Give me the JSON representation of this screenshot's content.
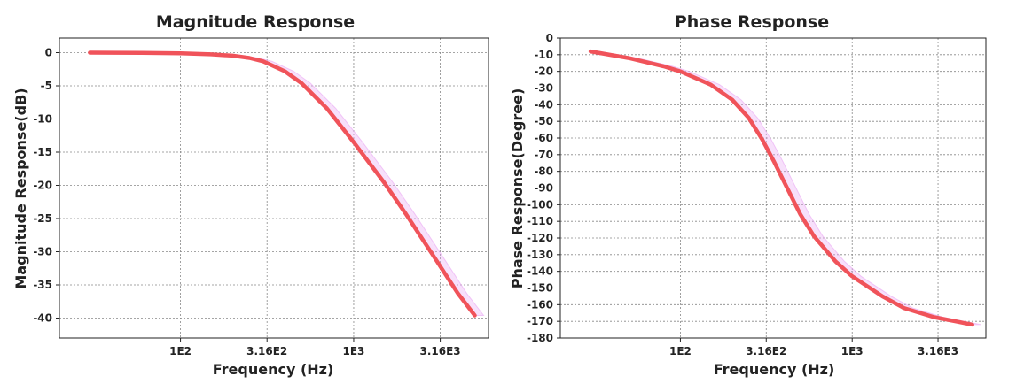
{
  "chart_data": [
    {
      "type": "line",
      "title": "Magnitude Response",
      "xlabel": "Frequency (Hz)",
      "ylabel": "Magnitude Response(dB)",
      "x_scale": "log",
      "xlim": [
        20,
        6000
      ],
      "ylim": [
        -43,
        2.2
      ],
      "grid": true,
      "x_ticks": [
        {
          "value": 100,
          "label": "1E2"
        },
        {
          "value": 316,
          "label": "3.16E2"
        },
        {
          "value": 1000,
          "label": "1E3"
        },
        {
          "value": 3160,
          "label": "3.16E3"
        }
      ],
      "y_ticks": [
        0,
        -5,
        -10,
        -15,
        -20,
        -25,
        -30,
        -35,
        -40
      ],
      "series": [
        {
          "color": "#f0535a",
          "band_color": "#e9a6f3",
          "x": [
            30,
            60,
            100,
            150,
            200,
            250,
            300,
            400,
            500,
            700,
            1000,
            1500,
            2000,
            3000,
            4000,
            5000
          ],
          "y": [
            0.0,
            -0.03,
            -0.1,
            -0.25,
            -0.45,
            -0.8,
            -1.3,
            -2.8,
            -4.6,
            -8.4,
            -13.5,
            -19.6,
            -24.3,
            -31.3,
            -36.3,
            -39.6
          ]
        }
      ]
    },
    {
      "type": "line",
      "title": "Phase Response",
      "xlabel": "Frequency (Hz)",
      "ylabel": "Phase Response(Degree)",
      "x_scale": "log",
      "xlim": [
        20,
        6000
      ],
      "ylim": [
        -180,
        0
      ],
      "grid": true,
      "x_ticks": [
        {
          "value": 100,
          "label": "1E2"
        },
        {
          "value": 316,
          "label": "3.16E2"
        },
        {
          "value": 1000,
          "label": "1E3"
        },
        {
          "value": 3160,
          "label": "3.16E3"
        }
      ],
      "y_ticks": [
        0,
        -10,
        -20,
        -30,
        -40,
        -50,
        -60,
        -70,
        -80,
        -90,
        -100,
        -110,
        -120,
        -130,
        -140,
        -150,
        -160,
        -170,
        -180
      ],
      "series": [
        {
          "color": "#f0535a",
          "band_color": "#e9a6f3",
          "x": [
            30,
            50,
            80,
            100,
            150,
            200,
            250,
            300,
            350,
            400,
            500,
            600,
            800,
            1000,
            1500,
            2000,
            3000,
            4000,
            5000
          ],
          "y": [
            -8,
            -12,
            -17,
            -20,
            -28,
            -37,
            -48,
            -61,
            -74,
            -86,
            -106,
            -119,
            -134,
            -143,
            -155,
            -162,
            -167.5,
            -170,
            -172
          ]
        }
      ]
    }
  ]
}
